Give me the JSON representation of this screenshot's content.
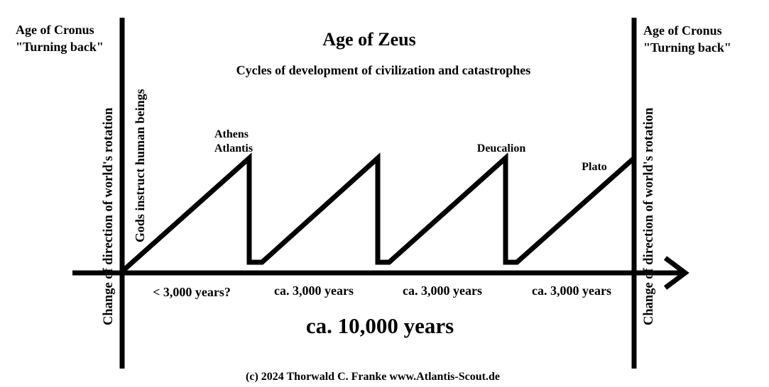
{
  "title": "Age of Zeus",
  "subtitle": "Cycles of development of civilization and catastrophes",
  "left_age": {
    "line1": "Age of Cronus",
    "line2": "\"Turning back\""
  },
  "right_age": {
    "line1": "Age of Cronus",
    "line2": "\"Turning back\""
  },
  "rotation_change_label": "Change of direction of world's rotation",
  "gods_label": "Gods instruct human beings",
  "peaks": {
    "athens": "Athens",
    "atlantis": "Atlantis",
    "deucalion": "Deucalion",
    "plato": "Plato"
  },
  "periods": [
    "< 3,000 years?",
    "ca. 3,000 years",
    "ca. 3,000 years",
    "ca. 3,000 years"
  ],
  "total": "ca. 10,000 years",
  "copyright": "(c)  2024 Thorwald C. Franke www.Atlantis-Scout.de",
  "colors": {
    "ink": "#000000",
    "background": "#ffffff"
  }
}
